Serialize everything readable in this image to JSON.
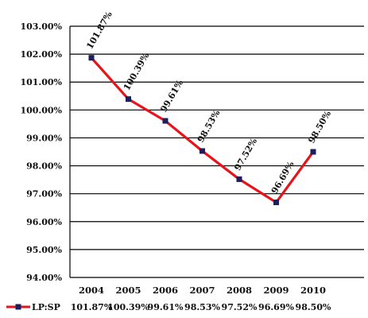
{
  "chart_data": {
    "type": "line",
    "title": "",
    "xlabel": "",
    "ylabel": "",
    "categories": [
      "2004",
      "2005",
      "2006",
      "2007",
      "2008",
      "2009",
      "2010"
    ],
    "series": [
      {
        "name": "LP:SP",
        "values": [
          101.87,
          100.39,
          99.61,
          98.53,
          97.52,
          96.69,
          98.5
        ],
        "data_labels": [
          "101.87%",
          "100.39%",
          "99.61%",
          "98.53%",
          "97.52%",
          "96.69%",
          "98.50%"
        ],
        "line_color": "#e8141b",
        "marker_color": "#1b1f5e"
      }
    ],
    "ylim": [
      94.0,
      103.0
    ],
    "y_ticks": [
      "94.00%",
      "95.00%",
      "96.00%",
      "97.00%",
      "98.00%",
      "99.00%",
      "100.00%",
      "101.00%",
      "102.00%",
      "103.00%"
    ],
    "grid": "horizontal",
    "legend": "data-table-bottom"
  }
}
